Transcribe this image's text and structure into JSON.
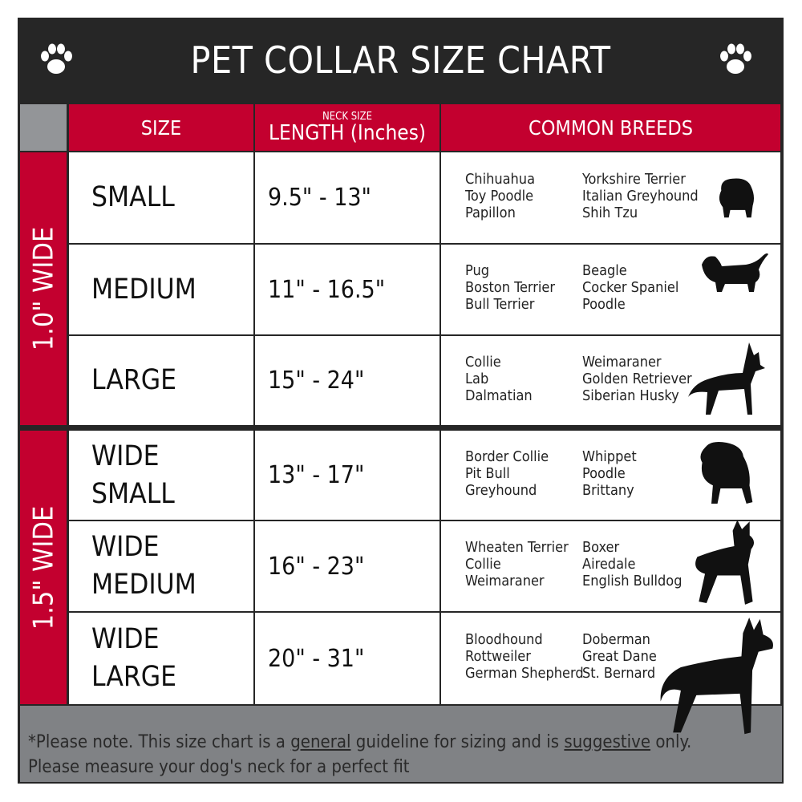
{
  "title": "PET COLLAR SIZE CHART",
  "icons": {
    "left": "paw-print-icon",
    "right": "paw-print-icon"
  },
  "colors": {
    "header": "#262626",
    "accent": "#c3002f",
    "gray": "#808285"
  },
  "headers": {
    "size": "SIZE",
    "length_small": "NECK SIZE",
    "length": "LENGTH (Inches)",
    "breeds": "COMMON BREEDS"
  },
  "groups": [
    {
      "label": "1.0\" WIDE"
    },
    {
      "label": "1.5\" WIDE"
    }
  ],
  "rows": [
    {
      "size1": "SMALL",
      "size2": "",
      "length": "9.5\" - 13\"",
      "breeds_a": [
        "Chihuahua",
        "Toy Poodle",
        "Papillon"
      ],
      "breeds_b": [
        "Yorkshire Terrier",
        "Italian Greyhound",
        "Shih Tzu"
      ],
      "icon": "small-dog-silhouette-icon"
    },
    {
      "size1": "MEDIUM",
      "size2": "",
      "length": "11\" - 16.5\"",
      "breeds_a": [
        "Pug",
        "Boston Terrier",
        "Bull Terrier"
      ],
      "breeds_b": [
        "Beagle",
        "Cocker Spaniel",
        "Poodle"
      ],
      "icon": "medium-dog-silhouette-icon"
    },
    {
      "size1": "LARGE",
      "size2": "",
      "length": "15\" - 24\"",
      "breeds_a": [
        "Collie",
        "Lab",
        "Dalmatian"
      ],
      "breeds_b": [
        "Weimaraner",
        "Golden Retriever",
        "Siberian Husky"
      ],
      "icon": "large-dog-silhouette-icon"
    },
    {
      "size1": "WIDE",
      "size2": "SMALL",
      "length": "13\" - 17\"",
      "breeds_a": [
        "Border Collie",
        "Pit Bull",
        "Greyhound"
      ],
      "breeds_b": [
        "Whippet",
        "Poodle",
        "Brittany"
      ],
      "icon": "bulldog-silhouette-icon"
    },
    {
      "size1": "WIDE",
      "size2": "MEDIUM",
      "length": "16\" - 23\"",
      "breeds_a": [
        "Wheaten Terrier",
        "Collie",
        "Weimaraner"
      ],
      "breeds_b": [
        "Boxer",
        "Airedale",
        "English Bulldog"
      ],
      "icon": "pitbull-silhouette-icon"
    },
    {
      "size1": "WIDE",
      "size2": "LARGE",
      "length": "20\" - 31\"",
      "breeds_a": [
        "Bloodhound",
        "Rottweiler",
        "German Shepherd"
      ],
      "breeds_b": [
        "Doberman",
        "Great Dane",
        "St. Bernard"
      ],
      "icon": "doberman-silhouette-icon"
    }
  ],
  "footer": {
    "p1": "*Please note. This size chart is a",
    "u1": "general",
    "p2": "guideline for sizing and is",
    "u2": "suggestive",
    "p3": "only.",
    "line2": "Please measure your dog's neck for a perfect fit"
  }
}
